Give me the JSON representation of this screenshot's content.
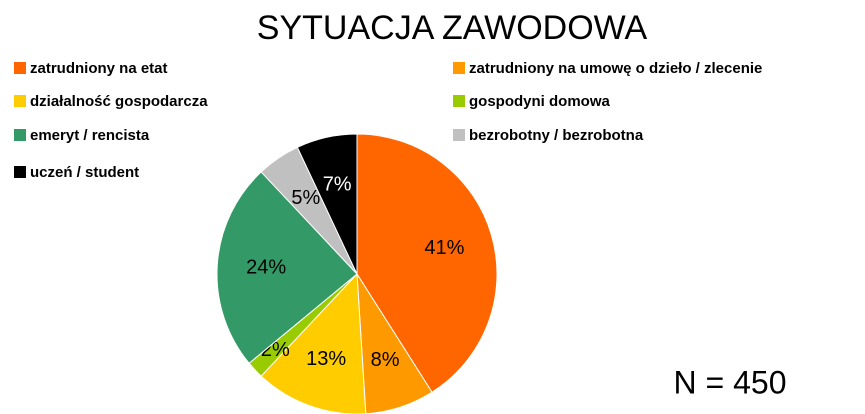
{
  "chart_data": {
    "type": "pie",
    "title": "SYTUACJA ZAWODOWA",
    "annotation": "N = 450",
    "categories": [
      "zatrudniony na etat",
      "zatrudniony na umowę o dzieło / zlecenie",
      "działalność gospodarcza",
      "gospodyni domowa",
      "emeryt / rencista",
      "bezrobotny / bezrobotna",
      "uczeń / student"
    ],
    "values": [
      41,
      8,
      13,
      2,
      24,
      5,
      7
    ],
    "value_labels": [
      "41%",
      "8%",
      "13%",
      "2%",
      "24%",
      "5%",
      "7%"
    ],
    "colors": [
      "#ff6600",
      "#ff9900",
      "#ffcc00",
      "#99cc00",
      "#339966",
      "#c0c0c0",
      "#000000"
    ]
  }
}
